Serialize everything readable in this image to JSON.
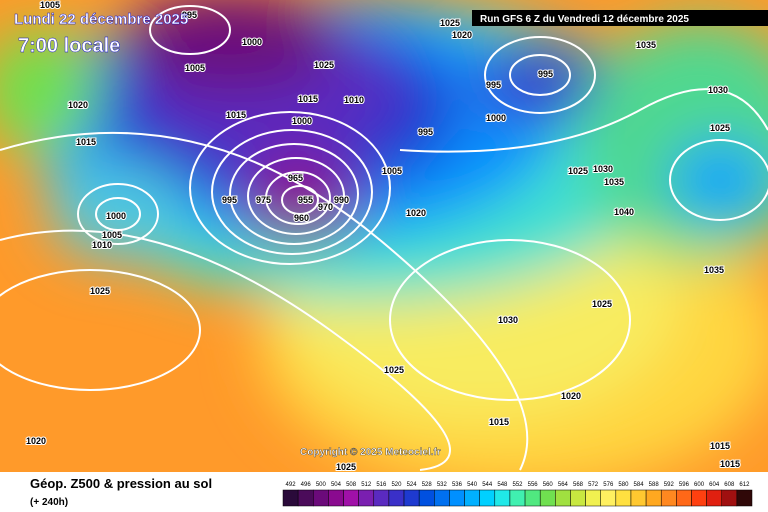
{
  "header": {
    "date": "Lundi 22 décembre 2025",
    "time": "7:00 locale",
    "run": "Run GFS 6 Z du Vendredi 12 décembre 2025"
  },
  "copyright": "Copyright © 2025 Meteociel.fr",
  "footer": {
    "title": "Géop. Z500 & pression au sol",
    "lead": "(+ 240h)"
  },
  "isobar_labels": [
    1005,
    995,
    1000,
    1025,
    1020,
    1035,
    995,
    1030,
    1025,
    1015,
    1010,
    1005,
    1020,
    995,
    1015,
    1000,
    1000,
    995,
    1025,
    1015,
    1005,
    1025,
    1030,
    1035,
    965,
    995,
    975,
    955,
    990,
    970,
    1020,
    1040,
    960,
    1000,
    1005,
    1010,
    1035,
    1025,
    1025,
    1030,
    1025,
    1020,
    1015,
    1020,
    1015,
    1015,
    1025
  ],
  "scale": {
    "values": [
      492,
      496,
      500,
      504,
      508,
      512,
      516,
      520,
      524,
      528,
      532,
      536,
      540,
      544,
      548,
      552,
      556,
      560,
      564,
      568,
      572,
      576,
      580,
      584,
      588,
      592,
      596,
      600,
      604,
      608,
      612
    ],
    "colors": [
      "#2a0a3a",
      "#4b0b5a",
      "#6b0a7a",
      "#8a0a8f",
      "#a010a8",
      "#7a1fb0",
      "#5a2ac0",
      "#3a30c8",
      "#1e3ad0",
      "#0050e0",
      "#0070f0",
      "#0090ff",
      "#00b0ff",
      "#00d0ff",
      "#20e8e8",
      "#40f0b0",
      "#50e880",
      "#70e050",
      "#a0e040",
      "#c8e840",
      "#f0f050",
      "#fff060",
      "#ffe040",
      "#ffc830",
      "#ffa820",
      "#ff8820",
      "#ff6818",
      "#ff4010",
      "#e02010",
      "#a01010",
      "#300808"
    ]
  }
}
